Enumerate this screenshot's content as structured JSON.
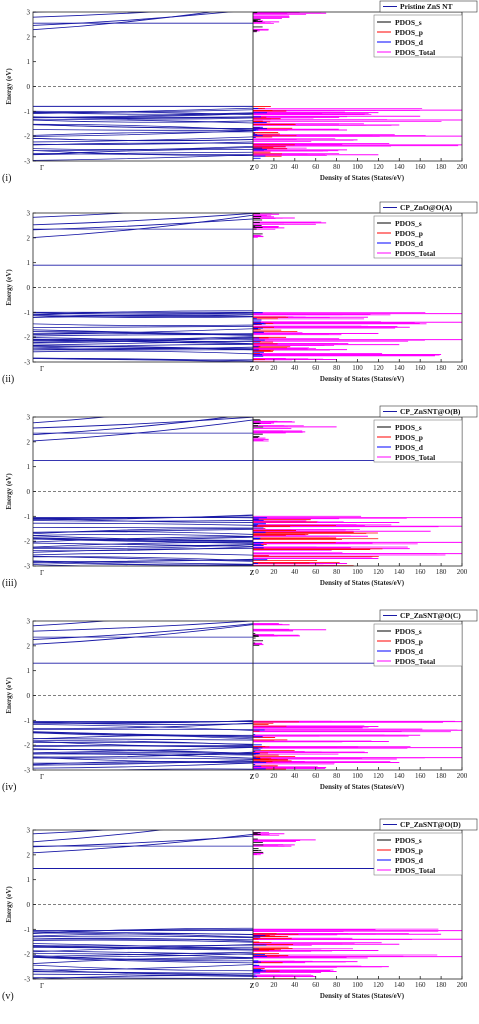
{
  "chart_data": [
    {
      "type": "line",
      "panel_label": "(i)",
      "band_legend": "Pristine ZnS NT",
      "pdos_legend": [
        "PDOS_s",
        "PDOS_p",
        "PDOS_d",
        "PDOS_Total"
      ],
      "ylabel": "Energy (eV)",
      "xlabel_band": [
        "Γ",
        "Z"
      ],
      "xlabel_dos": "Density of States (States/eV)",
      "ylim": [
        -3,
        3
      ],
      "yticks": [
        "3",
        "2",
        "1",
        "0",
        "-1",
        "-2",
        "-3"
      ],
      "dos_xlim": [
        0,
        200
      ],
      "dos_xticks": [
        "0",
        "20",
        "40",
        "60",
        "80",
        "100",
        "120",
        "140",
        "160",
        "180",
        "200"
      ],
      "conduction_band_min": 2.2,
      "valence_band_max": -0.8,
      "defect_levels": [],
      "dos_total_peaks": [
        {
          "e": -0.95,
          "v": 200
        },
        {
          "e": -1.05,
          "v": 120
        },
        {
          "e": -1.2,
          "v": 160
        },
        {
          "e": -1.35,
          "v": 200
        },
        {
          "e": -1.55,
          "v": 140
        },
        {
          "e": -1.75,
          "v": 90
        },
        {
          "e": -2.0,
          "v": 200
        },
        {
          "e": -2.15,
          "v": 100
        },
        {
          "e": -2.35,
          "v": 200
        },
        {
          "e": -2.55,
          "v": 90
        },
        {
          "e": -2.75,
          "v": 120
        },
        {
          "e": 2.3,
          "v": 15
        },
        {
          "e": 2.6,
          "v": 25
        },
        {
          "e": 2.8,
          "v": 35
        },
        {
          "e": 2.95,
          "v": 70
        }
      ]
    },
    {
      "type": "line",
      "panel_label": "(ii)",
      "band_legend": "CP_ZnO@O(A)",
      "pdos_legend": [
        "PDOS_s",
        "PDOS_p",
        "PDOS_d",
        "PDOS_Total"
      ],
      "ylabel": "Energy (eV)",
      "xlabel_band": [
        "Γ",
        "Z"
      ],
      "xlabel_dos": "Density of States (States/eV)",
      "ylim": [
        -3,
        3
      ],
      "yticks": [
        "3",
        "2",
        "1",
        "0",
        "-1",
        "-2",
        "-3"
      ],
      "dos_xlim": [
        0,
        200
      ],
      "dos_xticks": [
        "0",
        "20",
        "40",
        "60",
        "80",
        "100",
        "120",
        "140",
        "160",
        "180",
        "200"
      ],
      "conduction_band_min": 2.0,
      "valence_band_max": -1.0,
      "defect_levels": [
        0.9
      ],
      "dos_total_peaks": [
        {
          "e": -1.05,
          "v": 200
        },
        {
          "e": -1.2,
          "v": 110
        },
        {
          "e": -1.4,
          "v": 200
        },
        {
          "e": -1.6,
          "v": 150
        },
        {
          "e": -1.85,
          "v": 120
        },
        {
          "e": -2.1,
          "v": 200
        },
        {
          "e": -2.3,
          "v": 140
        },
        {
          "e": -2.5,
          "v": 90
        },
        {
          "e": -2.7,
          "v": 180
        },
        {
          "e": -2.9,
          "v": 80
        },
        {
          "e": 2.05,
          "v": 10
        },
        {
          "e": 2.4,
          "v": 30
        },
        {
          "e": 2.6,
          "v": 70
        },
        {
          "e": 2.8,
          "v": 40
        },
        {
          "e": 2.95,
          "v": 25
        }
      ]
    },
    {
      "type": "line",
      "panel_label": "(iii)",
      "band_legend": "CP_ZnSNT@O(B)",
      "pdos_legend": [
        "PDOS_s",
        "PDOS_p",
        "PDOS_d",
        "PDOS_Total"
      ],
      "ylabel": "Energy (eV)",
      "xlabel_band": [
        "Γ",
        "Z"
      ],
      "xlabel_dos": "Density of States (States/eV)",
      "ylim": [
        -3,
        3
      ],
      "yticks": [
        "3",
        "2",
        "1",
        "0",
        "-1",
        "-2",
        "-3"
      ],
      "dos_xlim": [
        0,
        200
      ],
      "dos_xticks": [
        "0",
        "20",
        "40",
        "60",
        "80",
        "100",
        "120",
        "140",
        "160",
        "180",
        "200"
      ],
      "conduction_band_min": 2.0,
      "valence_band_max": -1.05,
      "defect_levels": [
        1.25
      ],
      "dos_total_peaks": [
        {
          "e": -1.05,
          "v": 200
        },
        {
          "e": -1.25,
          "v": 140
        },
        {
          "e": -1.4,
          "v": 200
        },
        {
          "e": -1.6,
          "v": 170
        },
        {
          "e": -1.8,
          "v": 110
        },
        {
          "e": -2.05,
          "v": 200
        },
        {
          "e": -2.3,
          "v": 150
        },
        {
          "e": -2.5,
          "v": 200
        },
        {
          "e": -2.7,
          "v": 120
        },
        {
          "e": -2.9,
          "v": 90
        },
        {
          "e": 2.1,
          "v": 15
        },
        {
          "e": 2.4,
          "v": 50
        },
        {
          "e": 2.6,
          "v": 80
        },
        {
          "e": 2.8,
          "v": 40
        }
      ]
    },
    {
      "type": "line",
      "panel_label": "(iv)",
      "band_legend": "CP_ZnSNT@O(C)",
      "pdos_legend": [
        "PDOS_s",
        "PDOS_p",
        "PDOS_d",
        "PDOS_Total"
      ],
      "ylabel": "Energy (eV)",
      "xlabel_band": [
        "Γ",
        "Z"
      ],
      "xlabel_dos": "Density of States (States/eV)",
      "ylim": [
        -3,
        3
      ],
      "yticks": [
        "3",
        "2",
        "1",
        "0",
        "-1",
        "-2",
        "-3"
      ],
      "dos_xlim": [
        0,
        200
      ],
      "dos_xticks": [
        "0",
        "20",
        "40",
        "60",
        "80",
        "100",
        "120",
        "140",
        "160",
        "180",
        "200"
      ],
      "conduction_band_min": 2.0,
      "valence_band_max": -1.05,
      "defect_levels": [
        1.3
      ],
      "dos_total_peaks": [
        {
          "e": -1.05,
          "v": 200
        },
        {
          "e": -1.25,
          "v": 120
        },
        {
          "e": -1.4,
          "v": 200
        },
        {
          "e": -1.6,
          "v": 160
        },
        {
          "e": -1.85,
          "v": 130
        },
        {
          "e": -2.1,
          "v": 200
        },
        {
          "e": -2.3,
          "v": 110
        },
        {
          "e": -2.5,
          "v": 200
        },
        {
          "e": -2.7,
          "v": 140
        },
        {
          "e": -2.9,
          "v": 70
        },
        {
          "e": 2.05,
          "v": 10
        },
        {
          "e": 2.4,
          "v": 45
        },
        {
          "e": 2.65,
          "v": 70
        },
        {
          "e": 2.85,
          "v": 35
        }
      ]
    },
    {
      "type": "line",
      "panel_label": "(v)",
      "band_legend": "CP_ZnSNT@O(D)",
      "pdos_legend": [
        "PDOS_s",
        "PDOS_p",
        "PDOS_d",
        "PDOS_Total"
      ],
      "ylabel": "Energy (eV)",
      "xlabel_band": [
        "Γ",
        "Z"
      ],
      "xlabel_dos": "Density of States (States/eV)",
      "ylim": [
        -3,
        3
      ],
      "yticks": [
        "3",
        "2",
        "1",
        "0",
        "-1",
        "-2",
        "-3"
      ],
      "dos_xlim": [
        0,
        200
      ],
      "dos_xticks": [
        "0",
        "20",
        "40",
        "60",
        "80",
        "100",
        "120",
        "140",
        "160",
        "180",
        "200"
      ],
      "conduction_band_min": 2.0,
      "valence_band_max": -1.05,
      "defect_levels": [
        1.45
      ],
      "dos_total_peaks": [
        {
          "e": -1.05,
          "v": 200
        },
        {
          "e": -1.2,
          "v": 180
        },
        {
          "e": -1.4,
          "v": 200
        },
        {
          "e": -1.6,
          "v": 140
        },
        {
          "e": -1.85,
          "v": 120
        },
        {
          "e": -2.1,
          "v": 200
        },
        {
          "e": -2.3,
          "v": 100
        },
        {
          "e": -2.5,
          "v": 130
        },
        {
          "e": -2.7,
          "v": 80
        },
        {
          "e": -2.9,
          "v": 60
        },
        {
          "e": 2.05,
          "v": 10
        },
        {
          "e": 2.4,
          "v": 40
        },
        {
          "e": 2.6,
          "v": 60
        },
        {
          "e": 2.85,
          "v": 30
        }
      ]
    }
  ],
  "colors": {
    "band": "#1a1aa6",
    "pdos_s": "#000000",
    "pdos_p": "#ff0000",
    "pdos_d": "#0000ff",
    "pdos_total": "#ff00ff",
    "fermi": "#555555"
  }
}
